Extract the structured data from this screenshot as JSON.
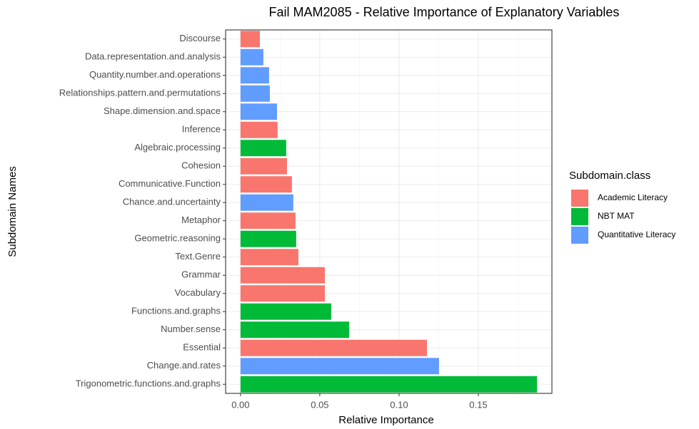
{
  "chart_data": {
    "type": "barh",
    "title": "Fail MAM2085 - Relative Importance of Explanatory Variables",
    "xlabel": "Relative Importance",
    "ylabel": "Subdomain Names",
    "legend_title": "Subdomain.class",
    "legend_position": "right",
    "grid": true,
    "categories": [
      "Discourse",
      "Data.representation.and.analysis",
      "Quantity.number.and.operations",
      "Relationships.pattern.and.permutations",
      "Shape.dimension.and.space",
      "Inference",
      "Algebraic.processing",
      "Cohesion",
      "Communicative.Function",
      "Chance.and.uncertainty",
      "Metaphor",
      "Geometric.reasoning",
      "Text.Genre",
      "Grammar",
      "Vocabulary",
      "Functions.and.graphs",
      "Number.sense",
      "Essential",
      "Change.and.rates",
      "Trigonometric.functions.and.graphs"
    ],
    "series": [
      {
        "name": "Academic Literacy",
        "color": "#f8766d",
        "values": [
          0.0122,
          null,
          null,
          null,
          null,
          0.0234,
          null,
          0.0293,
          0.0324,
          null,
          0.0347,
          null,
          0.0365,
          0.0532,
          0.0532,
          null,
          null,
          0.1176,
          null,
          null
        ]
      },
      {
        "name": "NBT MAT",
        "color": "#00ba38",
        "values": [
          null,
          null,
          null,
          null,
          null,
          null,
          0.0288,
          null,
          null,
          null,
          null,
          0.0351,
          null,
          null,
          null,
          0.0572,
          0.0685,
          null,
          null,
          0.187
        ]
      },
      {
        "name": "Quantitative Literacy",
        "color": "#619cff",
        "values": [
          null,
          0.0144,
          0.018,
          0.0185,
          0.023,
          null,
          null,
          null,
          null,
          0.0333,
          null,
          null,
          null,
          null,
          null,
          null,
          null,
          null,
          0.1252,
          null
        ]
      }
    ],
    "xlim": [
      -0.0094,
      0.1964
    ],
    "xticks": [
      {
        "value": 0,
        "label": "0.00"
      },
      0.05,
      {
        "value": 0.1,
        "label": "0.10"
      },
      0.15
    ]
  }
}
